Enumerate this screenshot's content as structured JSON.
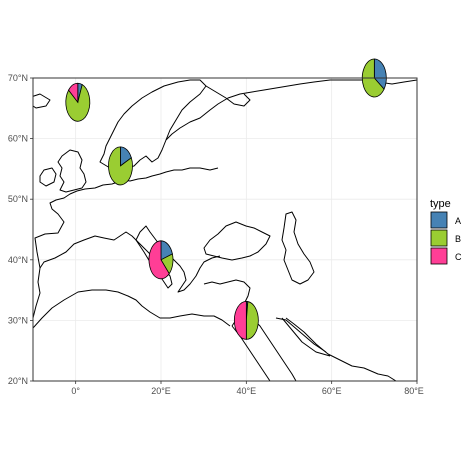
{
  "map": {
    "projection": "equirectangular",
    "lon_range": [
      -10,
      80
    ],
    "lat_range": [
      20,
      70
    ],
    "x_ticks": [
      {
        "value": 0,
        "label": "0°"
      },
      {
        "value": 20,
        "label": "20°E"
      },
      {
        "value": 40,
        "label": "40°E"
      },
      {
        "value": 60,
        "label": "60°E"
      },
      {
        "value": 80,
        "label": "80°E"
      }
    ],
    "y_ticks": [
      {
        "value": 20,
        "label": "20°N"
      },
      {
        "value": 30,
        "label": "30°N"
      },
      {
        "value": 40,
        "label": "40°N"
      },
      {
        "value": 50,
        "label": "50°N"
      },
      {
        "value": 60,
        "label": "60°N"
      },
      {
        "value": 70,
        "label": "70°N"
      }
    ],
    "grid": true
  },
  "legend": {
    "title": "type",
    "placement": "right",
    "items": [
      {
        "label": "A",
        "color": "#4682B4"
      },
      {
        "label": "B",
        "color": "#9ACD32"
      },
      {
        "label": "C",
        "color": "#FF3E96"
      }
    ]
  },
  "chart_data": {
    "type": "pie-map",
    "categories": [
      "A",
      "B",
      "C"
    ],
    "pies": [
      {
        "lon": 0.5,
        "lat": 66,
        "values": {
          "A": 0.06,
          "B": 0.8,
          "C": 0.14
        }
      },
      {
        "lon": 10.5,
        "lat": 55.5,
        "values": {
          "A": 0.18,
          "B": 0.82,
          "C": 0.0
        }
      },
      {
        "lon": 20,
        "lat": 40,
        "values": {
          "A": 0.2,
          "B": 0.18,
          "C": 0.62
        }
      },
      {
        "lon": 40,
        "lat": 30,
        "values": {
          "A": 0.02,
          "B": 0.48,
          "C": 0.5
        }
      },
      {
        "lon": 70,
        "lat": 70,
        "values": {
          "A": 0.35,
          "B": 0.65,
          "C": 0.0
        }
      }
    ]
  }
}
